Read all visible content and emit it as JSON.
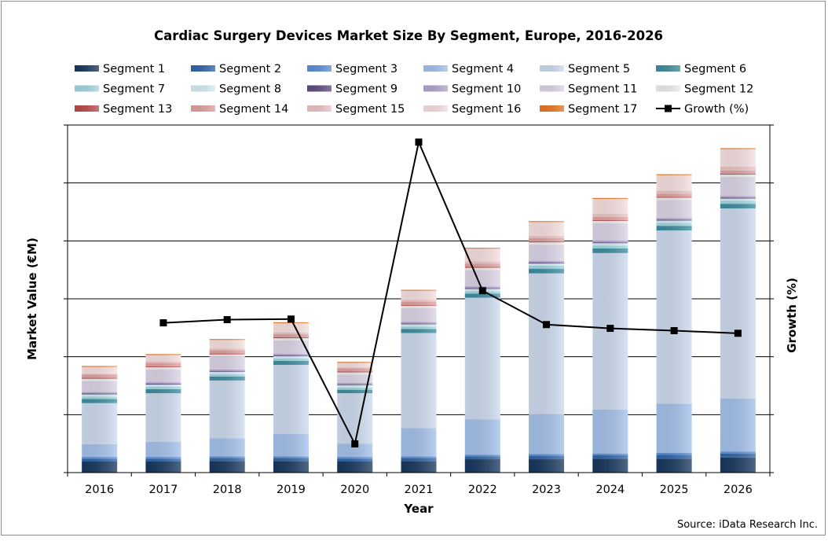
{
  "chart_data": {
    "type": "bar",
    "stacked": true,
    "title": "Cardiac Surgery Devices Market Size By Segment, Europe, 2016-2026",
    "xlabel": "Year",
    "ylabel": "Market Value (€M)",
    "y2label": "Growth (%)",
    "source": "Source: iData Research Inc.",
    "ylim": [
      0,
      60
    ],
    "y2lim": [
      -40,
      80
    ],
    "tick_labels_y": "none",
    "grid": true,
    "legend_position": "top",
    "categories": [
      "2016",
      "2017",
      "2018",
      "2019",
      "2020",
      "2021",
      "2022",
      "2023",
      "2024",
      "2025",
      "2026"
    ],
    "series": [
      {
        "name": "Segment 1",
        "color": "#17375e",
        "values": [
          1.9,
          1.9,
          2.0,
          2.0,
          1.9,
          2.0,
          2.3,
          2.3,
          2.4,
          2.4,
          2.6
        ]
      },
      {
        "name": "Segment 2",
        "color": "#2f65a8",
        "values": [
          0.5,
          0.5,
          0.5,
          0.5,
          0.5,
          0.5,
          0.5,
          0.6,
          0.6,
          0.7,
          0.7
        ]
      },
      {
        "name": "Segment 3",
        "color": "#5b8fd8",
        "values": [
          0.3,
          0.3,
          0.3,
          0.3,
          0.3,
          0.3,
          0.3,
          0.3,
          0.3,
          0.3,
          0.3
        ]
      },
      {
        "name": "Segment 4",
        "color": "#a3c0ea",
        "values": [
          2.2,
          2.6,
          3.1,
          3.9,
          2.3,
          4.9,
          6.1,
          6.9,
          7.6,
          8.5,
          9.2
        ]
      },
      {
        "name": "Segment 5",
        "color": "#ccdaee",
        "values": [
          7.1,
          8.4,
          10.0,
          11.9,
          8.7,
          16.4,
          21.0,
          24.3,
          27.0,
          29.9,
          32.8
        ]
      },
      {
        "name": "Segment 6",
        "color": "#3c8c9f",
        "values": [
          0.7,
          0.7,
          0.7,
          0.7,
          0.6,
          0.7,
          0.7,
          0.8,
          0.8,
          0.8,
          0.8
        ]
      },
      {
        "name": "Segment 7",
        "color": "#9fd6e0",
        "values": [
          0.4,
          0.4,
          0.4,
          0.4,
          0.4,
          0.4,
          0.4,
          0.5,
          0.5,
          0.5,
          0.5
        ]
      },
      {
        "name": "Segment 8",
        "color": "#d4edf1",
        "values": [
          0.4,
          0.4,
          0.4,
          0.4,
          0.4,
          0.4,
          0.4,
          0.4,
          0.4,
          0.4,
          0.4
        ]
      },
      {
        "name": "Segment 9",
        "color": "#5e4b82",
        "values": [
          0.15,
          0.15,
          0.15,
          0.15,
          0.15,
          0.15,
          0.15,
          0.15,
          0.15,
          0.15,
          0.15
        ]
      },
      {
        "name": "Segment 10",
        "color": "#b2a5cc",
        "values": [
          0.25,
          0.25,
          0.25,
          0.25,
          0.25,
          0.25,
          0.3,
          0.3,
          0.3,
          0.3,
          0.3
        ]
      },
      {
        "name": "Segment 11",
        "color": "#dad3e6",
        "values": [
          1.9,
          2.2,
          2.2,
          2.3,
          1.4,
          2.4,
          2.8,
          2.8,
          3.0,
          3.1,
          3.3
        ]
      },
      {
        "name": "Segment 12",
        "color": "#ededed",
        "values": [
          0.4,
          0.4,
          0.4,
          0.4,
          0.4,
          0.4,
          0.4,
          0.4,
          0.4,
          0.4,
          0.4
        ]
      },
      {
        "name": "Segment 13",
        "color": "#b94a4a",
        "values": [
          0.15,
          0.15,
          0.15,
          0.15,
          0.15,
          0.15,
          0.15,
          0.15,
          0.15,
          0.15,
          0.15
        ]
      },
      {
        "name": "Segment 14",
        "color": "#dfa0a0",
        "values": [
          0.55,
          0.55,
          0.55,
          0.55,
          0.55,
          0.55,
          0.55,
          0.55,
          0.55,
          0.55,
          0.55
        ]
      },
      {
        "name": "Segment 15",
        "color": "#ebc3c3",
        "values": [
          0.15,
          0.3,
          0.3,
          0.3,
          0.15,
          0.3,
          0.4,
          0.4,
          0.5,
          0.5,
          0.7
        ]
      },
      {
        "name": "Segment 16",
        "color": "#f6dfdf",
        "values": [
          1.2,
          1.1,
          1.5,
          1.6,
          0.8,
          1.6,
          2.2,
          2.4,
          2.6,
          2.7,
          3.0
        ]
      },
      {
        "name": "Segment 17",
        "color": "#e8761e",
        "values": [
          0.15,
          0.15,
          0.15,
          0.15,
          0.15,
          0.15,
          0.15,
          0.15,
          0.15,
          0.15,
          0.15
        ]
      }
    ],
    "growth": {
      "name": "Growth (%)",
      "color": "#000000",
      "values": [
        null,
        11.7,
        12.8,
        13.0,
        -30.1,
        74.1,
        22.8,
        11.1,
        9.8,
        9.0,
        8.1
      ]
    }
  }
}
